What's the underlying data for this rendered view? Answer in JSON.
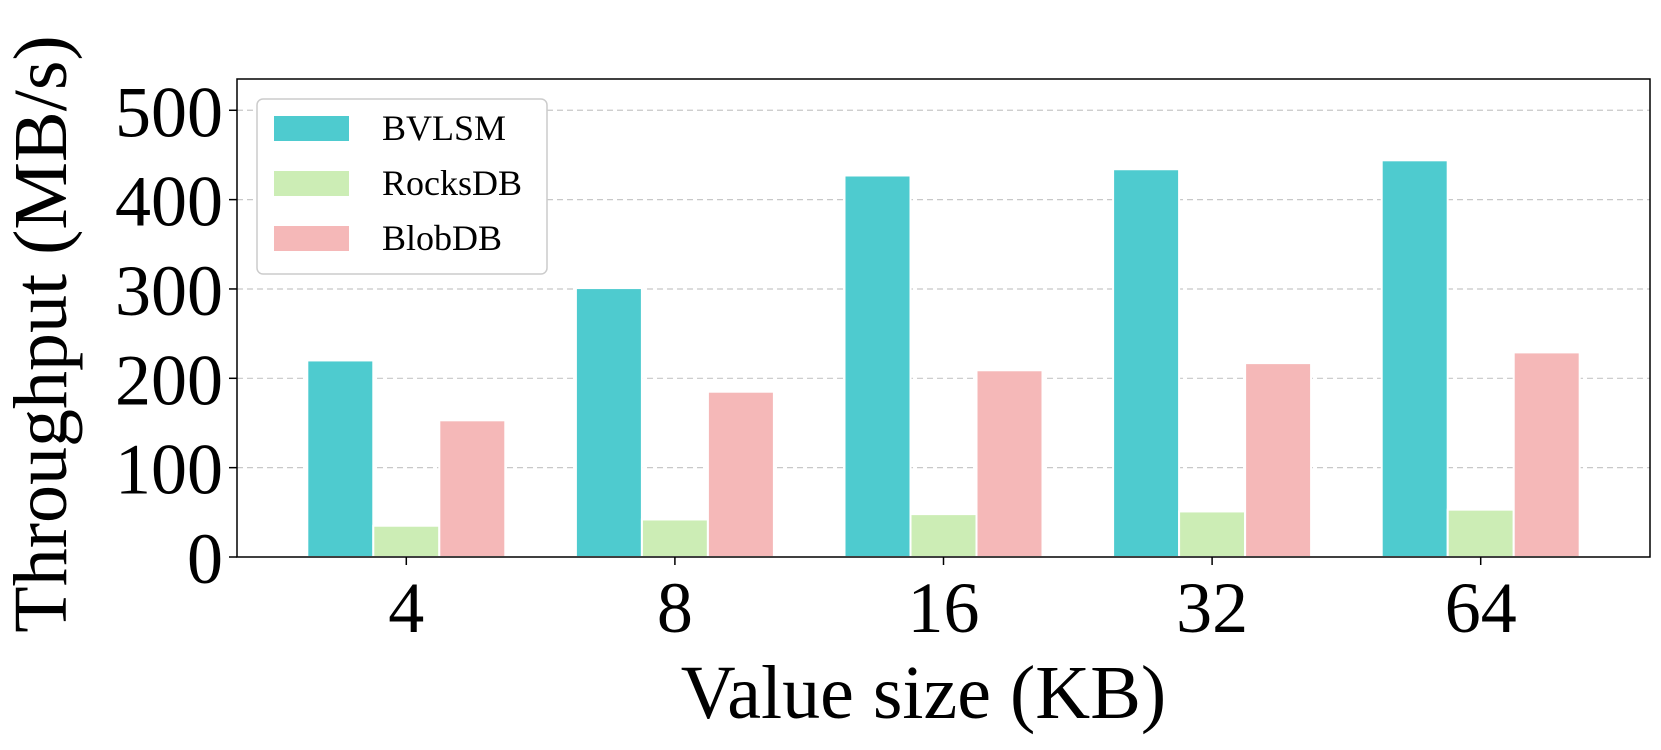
{
  "chart_data": {
    "type": "bar",
    "categories": [
      "4",
      "8",
      "16",
      "32",
      "64"
    ],
    "series": [
      {
        "name": "BVLSM",
        "color": "#4ecbcf",
        "values": [
          220,
          301,
          427,
          434,
          444
        ]
      },
      {
        "name": "RocksDB",
        "color": "#ccedb5",
        "values": [
          35,
          42,
          48,
          51,
          53
        ]
      },
      {
        "name": "BlobDB",
        "color": "#f5b8b8",
        "values": [
          153,
          185,
          209,
          217,
          229
        ]
      }
    ],
    "xlabel": "Value size (KB)",
    "ylabel": "Throughput (MB/s)",
    "ylim": [
      0,
      535
    ],
    "yticks": [
      0,
      100,
      200,
      300,
      400,
      500
    ],
    "grid": "y-dashed",
    "legend_position": "top-left"
  }
}
